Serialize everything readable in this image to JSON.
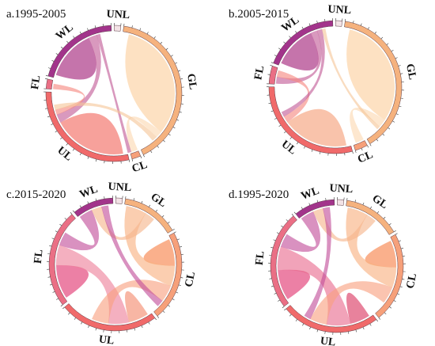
{
  "panels": [
    {
      "title": "a.1995-2005",
      "sectors": [
        {
          "name": "UNL",
          "label": "UNL",
          "color": "#f3e3e6",
          "flow": 1.6
        },
        {
          "name": "GL",
          "label": "GL",
          "color": "#f5b27e",
          "flow": 42
        },
        {
          "name": "CL",
          "label": "CL",
          "color": "#f6a07a",
          "flow": 2.2
        },
        {
          "name": "UL",
          "label": "UL",
          "color": "#f06a6a",
          "flow": 30
        },
        {
          "name": "FL",
          "label": "FL",
          "color": "#ea6f85",
          "flow": 2.4
        },
        {
          "name": "WL",
          "label": "WL",
          "color": "#a2348b",
          "flow": 21
        }
      ],
      "flows": [
        {
          "from": "GL",
          "to": "GL",
          "value": 36,
          "color": "#fcd9b1"
        },
        {
          "from": "UL",
          "to": "UL",
          "value": 22,
          "color": "#f5877f"
        },
        {
          "from": "WL",
          "to": "WL",
          "value": 15,
          "color": "#b54d94"
        },
        {
          "from": "GL",
          "to": "CL",
          "value": 2.0,
          "color": "#fcd9b1"
        },
        {
          "from": "WL",
          "to": "UL",
          "value": 2.5,
          "color": "#c15b96"
        },
        {
          "from": "UL",
          "to": "FL",
          "value": 1.5,
          "color": "#f5877f"
        },
        {
          "from": "WL",
          "to": "CL",
          "value": 1.0,
          "color": "#c15b96"
        },
        {
          "from": "GL",
          "to": "UL",
          "value": 1.5,
          "color": "#f5c79a"
        }
      ]
    },
    {
      "title": "b.2005-2015",
      "sectors": [
        {
          "name": "UNL",
          "label": "UNL",
          "color": "#f3e3e6",
          "flow": 1.6
        },
        {
          "name": "GL",
          "label": "GL",
          "color": "#f5b27e",
          "flow": 40
        },
        {
          "name": "CL",
          "label": "CL",
          "color": "#f6a07a",
          "flow": 3.2
        },
        {
          "name": "UL",
          "label": "UL",
          "color": "#f06a6a",
          "flow": 30
        },
        {
          "name": "FL",
          "label": "FL",
          "color": "#ea6f85",
          "flow": 4.5
        },
        {
          "name": "WL",
          "label": "WL",
          "color": "#a2348b",
          "flow": 19
        }
      ],
      "flows": [
        {
          "from": "GL",
          "to": "GL",
          "value": 34,
          "color": "#fcd9b1"
        },
        {
          "from": "UL",
          "to": "UL",
          "value": 20,
          "color": "#f7b293"
        },
        {
          "from": "WL",
          "to": "WL",
          "value": 13,
          "color": "#b54d94"
        },
        {
          "from": "GL",
          "to": "CL",
          "value": 2.5,
          "color": "#fcd9b1"
        },
        {
          "from": "WL",
          "to": "FL",
          "value": 2.0,
          "color": "#c15b96"
        },
        {
          "from": "UL",
          "to": "FL",
          "value": 2.0,
          "color": "#f5877f"
        },
        {
          "from": "WL",
          "to": "UL",
          "value": 1.5,
          "color": "#c15b96"
        },
        {
          "from": "GL",
          "to": "WL",
          "value": 1.0,
          "color": "#f5c79a"
        }
      ]
    },
    {
      "title": "c.2015-2020",
      "sectors": [
        {
          "name": "UNL",
          "label": "UNL",
          "color": "#f3e3e6",
          "flow": 1.6
        },
        {
          "name": "GL",
          "label": "GL",
          "color": "#f5b27e",
          "flow": 14
        },
        {
          "name": "CL",
          "label": "CL",
          "color": "#f6a07a",
          "flow": 22
        },
        {
          "name": "UL",
          "label": "UL",
          "color": "#f06a6a",
          "flow": 24
        },
        {
          "name": "FL",
          "label": "FL",
          "color": "#ea6f85",
          "flow": 24
        },
        {
          "name": "WL",
          "label": "WL",
          "color": "#a2348b",
          "flow": 10
        }
      ],
      "flows": [
        {
          "from": "FL",
          "to": "FL",
          "value": 10,
          "color": "#e75c8c"
        },
        {
          "from": "CL",
          "to": "CL",
          "value": 8,
          "color": "#f99a6c"
        },
        {
          "from": "UL",
          "to": "UL",
          "value": 6,
          "color": "#f6a18a"
        },
        {
          "from": "GL",
          "to": "CL",
          "value": 6,
          "color": "#f8b07f"
        },
        {
          "from": "FL",
          "to": "UL",
          "value": 6,
          "color": "#ee7f9a"
        },
        {
          "from": "WL",
          "to": "FL",
          "value": 4,
          "color": "#c14e9a"
        },
        {
          "from": "UL",
          "to": "CL",
          "value": 5,
          "color": "#f9a07f"
        },
        {
          "from": "GL",
          "to": "WL",
          "value": 3,
          "color": "#f6b48a"
        },
        {
          "from": "WL",
          "to": "CL",
          "value": 2,
          "color": "#c14e9a"
        }
      ]
    },
    {
      "title": "d.1995-2020",
      "sectors": [
        {
          "name": "UNL",
          "label": "UNL",
          "color": "#f3e3e6",
          "flow": 1.6
        },
        {
          "name": "GL",
          "label": "GL",
          "color": "#f5b27e",
          "flow": 14
        },
        {
          "name": "CL",
          "label": "CL",
          "color": "#f6a07a",
          "flow": 22
        },
        {
          "name": "UL",
          "label": "UL",
          "color": "#f06a6a",
          "flow": 24
        },
        {
          "name": "FL",
          "label": "FL",
          "color": "#ea6f85",
          "flow": 24
        },
        {
          "name": "WL",
          "label": "WL",
          "color": "#a2348b",
          "flow": 10
        }
      ],
      "flows": [
        {
          "from": "FL",
          "to": "FL",
          "value": 9,
          "color": "#e75c8c"
        },
        {
          "from": "CL",
          "to": "CL",
          "value": 8,
          "color": "#f99a6c"
        },
        {
          "from": "UL",
          "to": "UL",
          "value": 6,
          "color": "#e25f80"
        },
        {
          "from": "GL",
          "to": "CL",
          "value": 6,
          "color": "#f8b07f"
        },
        {
          "from": "FL",
          "to": "UL",
          "value": 7,
          "color": "#e86b8e"
        },
        {
          "from": "WL",
          "to": "FL",
          "value": 4,
          "color": "#c14e9a"
        },
        {
          "from": "UL",
          "to": "CL",
          "value": 5,
          "color": "#f9a07f"
        },
        {
          "from": "GL",
          "to": "WL",
          "value": 3,
          "color": "#f6b48a"
        },
        {
          "from": "WL",
          "to": "UL",
          "value": 2,
          "color": "#c14e9a"
        }
      ]
    }
  ]
}
